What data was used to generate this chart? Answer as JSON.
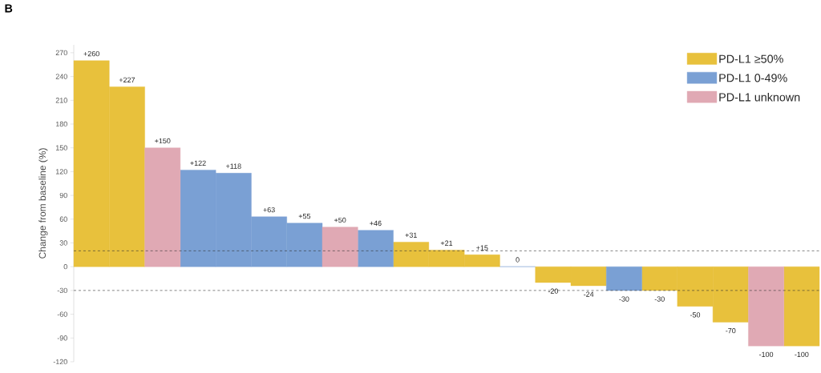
{
  "chart_data": {
    "type": "bar",
    "title": "B",
    "ylabel": "Change from baseline (%)",
    "categories": [
      null,
      null,
      null,
      null,
      null,
      null,
      null,
      null,
      null,
      null,
      null,
      null,
      null,
      null,
      null,
      null,
      null,
      null,
      null,
      null,
      null
    ],
    "series": [
      {
        "name": "PD-L1 ≥50%",
        "color": "#e8c13c",
        "values": [
          260,
          227,
          null,
          null,
          null,
          null,
          null,
          null,
          null,
          31,
          21,
          15,
          null,
          -20,
          -24,
          null,
          -30,
          -50,
          -70,
          null,
          -100
        ],
        "value_labels": [
          "+260",
          "+227",
          null,
          null,
          null,
          null,
          null,
          null,
          null,
          "+31",
          "+21",
          "+15",
          null,
          "-20",
          "-24",
          null,
          "-30",
          "-50",
          "-70",
          null,
          "-100"
        ]
      },
      {
        "name": "PD-L1 0-49%",
        "color": "#7aa0d4",
        "values": [
          null,
          null,
          null,
          122,
          118,
          63,
          55,
          null,
          46,
          null,
          null,
          null,
          0,
          null,
          null,
          -30,
          null,
          null,
          null,
          null,
          null
        ],
        "value_labels": [
          null,
          null,
          null,
          "+122",
          "+118",
          "+63",
          "+55",
          null,
          "+46",
          null,
          null,
          null,
          "0",
          null,
          null,
          "-30",
          null,
          null,
          null,
          null,
          null
        ]
      },
      {
        "name": "PD-L1 unknown",
        "color": "#e0a9b4",
        "values": [
          null,
          null,
          150,
          null,
          null,
          null,
          null,
          50,
          null,
          null,
          null,
          null,
          null,
          null,
          null,
          null,
          null,
          null,
          null,
          -100,
          null
        ],
        "value_labels": [
          null,
          null,
          "+150",
          null,
          null,
          null,
          null,
          "+50",
          null,
          null,
          null,
          null,
          null,
          null,
          null,
          null,
          null,
          null,
          null,
          "-100",
          null
        ]
      }
    ],
    "ylim": [
      -120,
      280
    ],
    "yticks": [
      -120,
      -90,
      -60,
      -30,
      0,
      30,
      60,
      90,
      120,
      150,
      180,
      210,
      240,
      270
    ],
    "ref_lines": [
      {
        "axis": "y",
        "value": 20,
        "line_style": "dashed"
      },
      {
        "axis": "y",
        "value": -30,
        "line_style": "dashed"
      }
    ],
    "legend": "top right"
  }
}
